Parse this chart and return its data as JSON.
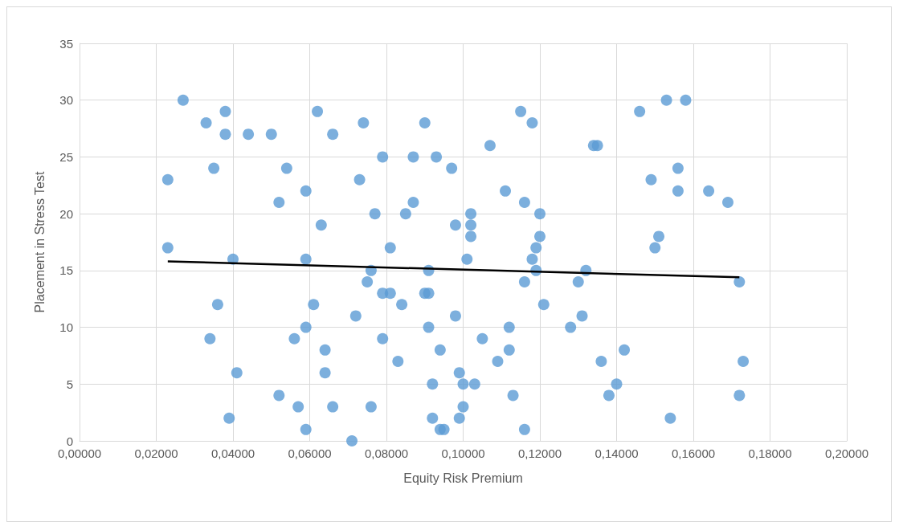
{
  "chart_data": {
    "type": "scatter",
    "xlabel": "Equity Risk Premium",
    "ylabel": "Placement in Stress Test",
    "xlim": [
      0,
      0.2
    ],
    "ylim": [
      0,
      35
    ],
    "xticks": [
      {
        "value": 0,
        "label": "0,00000"
      },
      {
        "value": 0.02,
        "label": "0,02000"
      },
      {
        "value": 0.04,
        "label": "0,04000"
      },
      {
        "value": 0.06,
        "label": "0,06000"
      },
      {
        "value": 0.08,
        "label": "0,08000"
      },
      {
        "value": 0.1,
        "label": "0,10000"
      },
      {
        "value": 0.12,
        "label": "0,12000"
      },
      {
        "value": 0.14,
        "label": "0,14000"
      },
      {
        "value": 0.16,
        "label": "0,16000"
      },
      {
        "value": 0.18,
        "label": "0,18000"
      },
      {
        "value": 0.2,
        "label": "0,20000"
      }
    ],
    "yticks": [
      0,
      5,
      10,
      15,
      20,
      25,
      30,
      35
    ],
    "grid": true,
    "marker": "circle",
    "series": [
      {
        "color": "#5b9bd5",
        "x": [
          0.027,
          0.023,
          0.023,
          0.033,
          0.038,
          0.038,
          0.035,
          0.034,
          0.036,
          0.04,
          0.039,
          0.041,
          0.044,
          0.05,
          0.052,
          0.054,
          0.052,
          0.056,
          0.057,
          0.059,
          0.059,
          0.059,
          0.059,
          0.062,
          0.063,
          0.061,
          0.064,
          0.064,
          0.066,
          0.066,
          0.071,
          0.074,
          0.073,
          0.072,
          0.075,
          0.076,
          0.077,
          0.076,
          0.079,
          0.079,
          0.079,
          0.081,
          0.081,
          0.084,
          0.083,
          0.085,
          0.087,
          0.087,
          0.09,
          0.091,
          0.09,
          0.091,
          0.091,
          0.092,
          0.092,
          0.093,
          0.094,
          0.094,
          0.095,
          0.097,
          0.098,
          0.098,
          0.099,
          0.1,
          0.1,
          0.099,
          0.101,
          0.102,
          0.102,
          0.102,
          0.103,
          0.105,
          0.107,
          0.109,
          0.111,
          0.112,
          0.112,
          0.113,
          0.115,
          0.116,
          0.116,
          0.116,
          0.118,
          0.118,
          0.119,
          0.119,
          0.12,
          0.12,
          0.121,
          0.128,
          0.13,
          0.131,
          0.132,
          0.134,
          0.135,
          0.136,
          0.138,
          0.14,
          0.142,
          0.146,
          0.149,
          0.15,
          0.151,
          0.153,
          0.154,
          0.158,
          0.156,
          0.156,
          0.164,
          0.169,
          0.172,
          0.173,
          0.172
        ],
        "values": [
          30,
          23,
          17,
          28,
          29,
          27,
          24,
          9,
          12,
          16,
          2,
          6,
          27,
          27,
          21,
          24,
          4,
          9,
          3,
          22,
          16,
          10,
          1,
          29,
          19,
          12,
          8,
          6,
          27,
          3,
          0,
          28,
          23,
          11,
          14,
          15,
          20,
          3,
          25,
          13,
          9,
          17,
          13,
          12,
          7,
          20,
          25,
          21,
          28,
          15,
          13,
          13,
          10,
          5,
          2,
          25,
          8,
          1,
          1,
          24,
          19,
          11,
          6,
          5,
          3,
          2,
          16,
          20,
          19,
          18,
          5,
          9,
          26,
          7,
          22,
          10,
          8,
          4,
          29,
          21,
          14,
          1,
          28,
          16,
          17,
          15,
          20,
          18,
          12,
          10,
          14,
          11,
          15,
          26,
          26,
          7,
          4,
          5,
          8,
          29,
          23,
          17,
          18,
          30,
          2,
          30,
          24,
          22,
          22,
          21,
          14,
          7,
          4
        ]
      },
      {
        "type": "line",
        "color": "#000000",
        "marker": "none",
        "x": [
          0.023,
          0.172
        ],
        "values": [
          15.8,
          14.4
        ]
      }
    ]
  }
}
